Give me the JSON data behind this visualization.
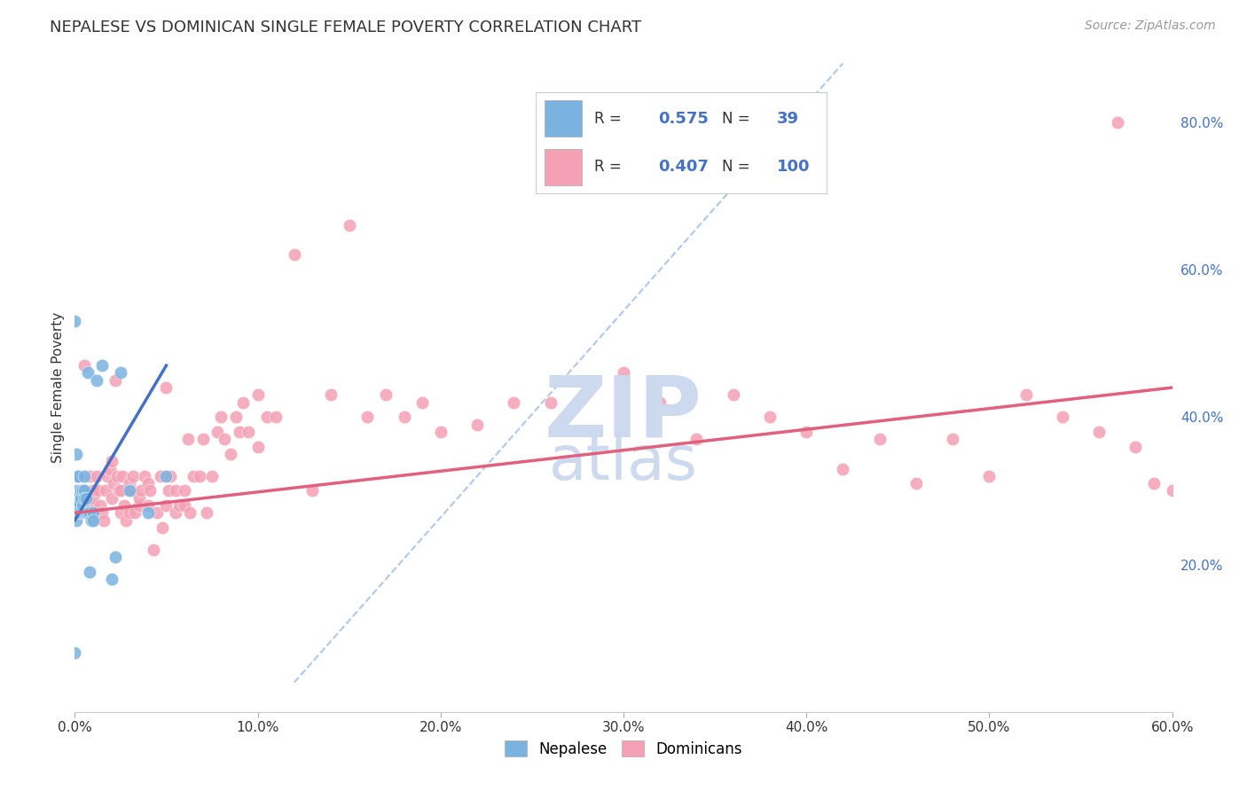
{
  "title": "NEPALESE VS DOMINICAN SINGLE FEMALE POVERTY CORRELATION CHART",
  "source": "Source: ZipAtlas.com",
  "ylabel": "Single Female Poverty",
  "xlim": [
    0.0,
    0.6
  ],
  "ylim": [
    0.0,
    0.88
  ],
  "nepalese_R": 0.575,
  "nepalese_N": 39,
  "dominican_R": 0.407,
  "dominican_N": 100,
  "nepalese_color": "#7ab3e0",
  "dominican_color": "#f4a0b5",
  "nepalese_line_color": "#4472c4",
  "dominican_line_color": "#e0607e",
  "dashed_line_color": "#b0c8e8",
  "watermark_color": "#d0dff0",
  "background_color": "#ffffff",
  "grid_color": "#e0e0e0",
  "nepalese_x": [
    0.0,
    0.0,
    0.001,
    0.001,
    0.001,
    0.001,
    0.001,
    0.001,
    0.002,
    0.002,
    0.002,
    0.002,
    0.002,
    0.003,
    0.003,
    0.003,
    0.004,
    0.004,
    0.005,
    0.005,
    0.005,
    0.005,
    0.006,
    0.006,
    0.007,
    0.007,
    0.008,
    0.008,
    0.009,
    0.01,
    0.01,
    0.012,
    0.015,
    0.02,
    0.022,
    0.025,
    0.03,
    0.04,
    0.05
  ],
  "nepalese_y": [
    0.08,
    0.53,
    0.29,
    0.35,
    0.3,
    0.28,
    0.27,
    0.26,
    0.32,
    0.32,
    0.3,
    0.28,
    0.27,
    0.3,
    0.29,
    0.27,
    0.3,
    0.28,
    0.32,
    0.3,
    0.29,
    0.27,
    0.29,
    0.27,
    0.46,
    0.27,
    0.19,
    0.27,
    0.26,
    0.27,
    0.26,
    0.45,
    0.47,
    0.18,
    0.21,
    0.46,
    0.3,
    0.27,
    0.32
  ],
  "dominican_x": [
    0.005,
    0.007,
    0.008,
    0.01,
    0.01,
    0.01,
    0.012,
    0.013,
    0.014,
    0.015,
    0.016,
    0.017,
    0.018,
    0.019,
    0.02,
    0.02,
    0.021,
    0.022,
    0.023,
    0.024,
    0.025,
    0.025,
    0.026,
    0.027,
    0.028,
    0.03,
    0.03,
    0.031,
    0.032,
    0.033,
    0.035,
    0.035,
    0.036,
    0.038,
    0.04,
    0.04,
    0.041,
    0.043,
    0.045,
    0.047,
    0.048,
    0.05,
    0.05,
    0.051,
    0.052,
    0.055,
    0.055,
    0.057,
    0.06,
    0.06,
    0.062,
    0.063,
    0.065,
    0.068,
    0.07,
    0.072,
    0.075,
    0.078,
    0.08,
    0.082,
    0.085,
    0.088,
    0.09,
    0.092,
    0.095,
    0.1,
    0.1,
    0.105,
    0.11,
    0.12,
    0.13,
    0.14,
    0.15,
    0.16,
    0.17,
    0.18,
    0.19,
    0.2,
    0.22,
    0.24,
    0.26,
    0.28,
    0.3,
    0.32,
    0.34,
    0.36,
    0.38,
    0.4,
    0.42,
    0.44,
    0.46,
    0.48,
    0.5,
    0.52,
    0.54,
    0.56,
    0.57,
    0.58,
    0.59,
    0.6
  ],
  "dominican_y": [
    0.47,
    0.29,
    0.32,
    0.28,
    0.29,
    0.3,
    0.32,
    0.3,
    0.28,
    0.27,
    0.26,
    0.3,
    0.32,
    0.33,
    0.29,
    0.34,
    0.31,
    0.45,
    0.32,
    0.3,
    0.27,
    0.3,
    0.32,
    0.28,
    0.26,
    0.27,
    0.31,
    0.3,
    0.32,
    0.27,
    0.28,
    0.29,
    0.3,
    0.32,
    0.28,
    0.31,
    0.3,
    0.22,
    0.27,
    0.32,
    0.25,
    0.28,
    0.44,
    0.3,
    0.32,
    0.27,
    0.3,
    0.28,
    0.28,
    0.3,
    0.37,
    0.27,
    0.32,
    0.32,
    0.37,
    0.27,
    0.32,
    0.38,
    0.4,
    0.37,
    0.35,
    0.4,
    0.38,
    0.42,
    0.38,
    0.36,
    0.43,
    0.4,
    0.4,
    0.62,
    0.3,
    0.43,
    0.66,
    0.4,
    0.43,
    0.4,
    0.42,
    0.38,
    0.39,
    0.42,
    0.42,
    0.44,
    0.46,
    0.42,
    0.37,
    0.43,
    0.4,
    0.38,
    0.33,
    0.37,
    0.31,
    0.37,
    0.32,
    0.43,
    0.4,
    0.38,
    0.8,
    0.36,
    0.31,
    0.3
  ],
  "nep_line_x": [
    0.0,
    0.05
  ],
  "nep_line_y": [
    0.26,
    0.47
  ],
  "dom_line_x": [
    0.0,
    0.6
  ],
  "dom_line_y": [
    0.27,
    0.44
  ],
  "dash_line_x": [
    0.12,
    0.42
  ],
  "dash_line_y": [
    0.04,
    0.88
  ],
  "x_ticks": [
    0.0,
    0.1,
    0.2,
    0.3,
    0.4,
    0.5,
    0.6
  ],
  "y_ticks_right": [
    0.2,
    0.4,
    0.6,
    0.8
  ]
}
